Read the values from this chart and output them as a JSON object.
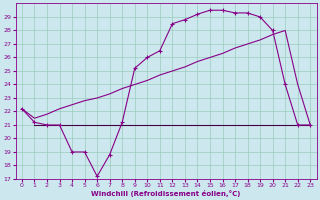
{
  "xlabel": "Windchill (Refroidissement éolien,°C)",
  "ylabel": "",
  "bg_color": "#cce8ee",
  "line_color": "#880088",
  "line2_color": "#440044",
  "grid_color": "#99ccbb",
  "xlim": [
    -0.5,
    23.5
  ],
  "ylim": [
    17,
    30
  ],
  "yticks": [
    17,
    18,
    19,
    20,
    21,
    22,
    23,
    24,
    25,
    26,
    27,
    28,
    29
  ],
  "xticks": [
    0,
    1,
    2,
    3,
    4,
    5,
    6,
    7,
    8,
    9,
    10,
    11,
    12,
    13,
    14,
    15,
    16,
    17,
    18,
    19,
    20,
    21,
    22,
    23
  ],
  "line1_x": [
    0,
    1,
    2,
    3,
    4,
    5,
    6,
    7,
    8,
    9,
    10,
    11,
    12,
    13,
    14,
    15,
    16,
    17,
    18,
    19,
    20,
    21,
    22,
    23
  ],
  "line1_y": [
    22.2,
    21.2,
    21.0,
    21.0,
    19.0,
    19.0,
    17.2,
    18.8,
    21.2,
    25.2,
    26.0,
    26.5,
    28.5,
    28.8,
    29.2,
    29.5,
    29.5,
    29.3,
    29.3,
    29.0,
    28.0,
    24.0,
    21.0,
    21.0
  ],
  "line2_x": [
    1,
    19,
    22,
    23
  ],
  "line2_y": [
    21.0,
    21.0,
    21.0,
    21.0
  ],
  "line3_x": [
    0,
    1,
    2,
    3,
    4,
    5,
    6,
    7,
    8,
    9,
    10,
    11,
    12,
    13,
    14,
    15,
    16,
    17,
    18,
    19,
    20,
    21,
    22,
    23
  ],
  "line3_y": [
    22.2,
    21.5,
    21.8,
    22.2,
    22.5,
    22.8,
    23.0,
    23.3,
    23.7,
    24.0,
    24.3,
    24.7,
    25.0,
    25.3,
    25.7,
    26.0,
    26.3,
    26.7,
    27.0,
    27.3,
    27.7,
    28.0,
    24.0,
    21.0
  ]
}
